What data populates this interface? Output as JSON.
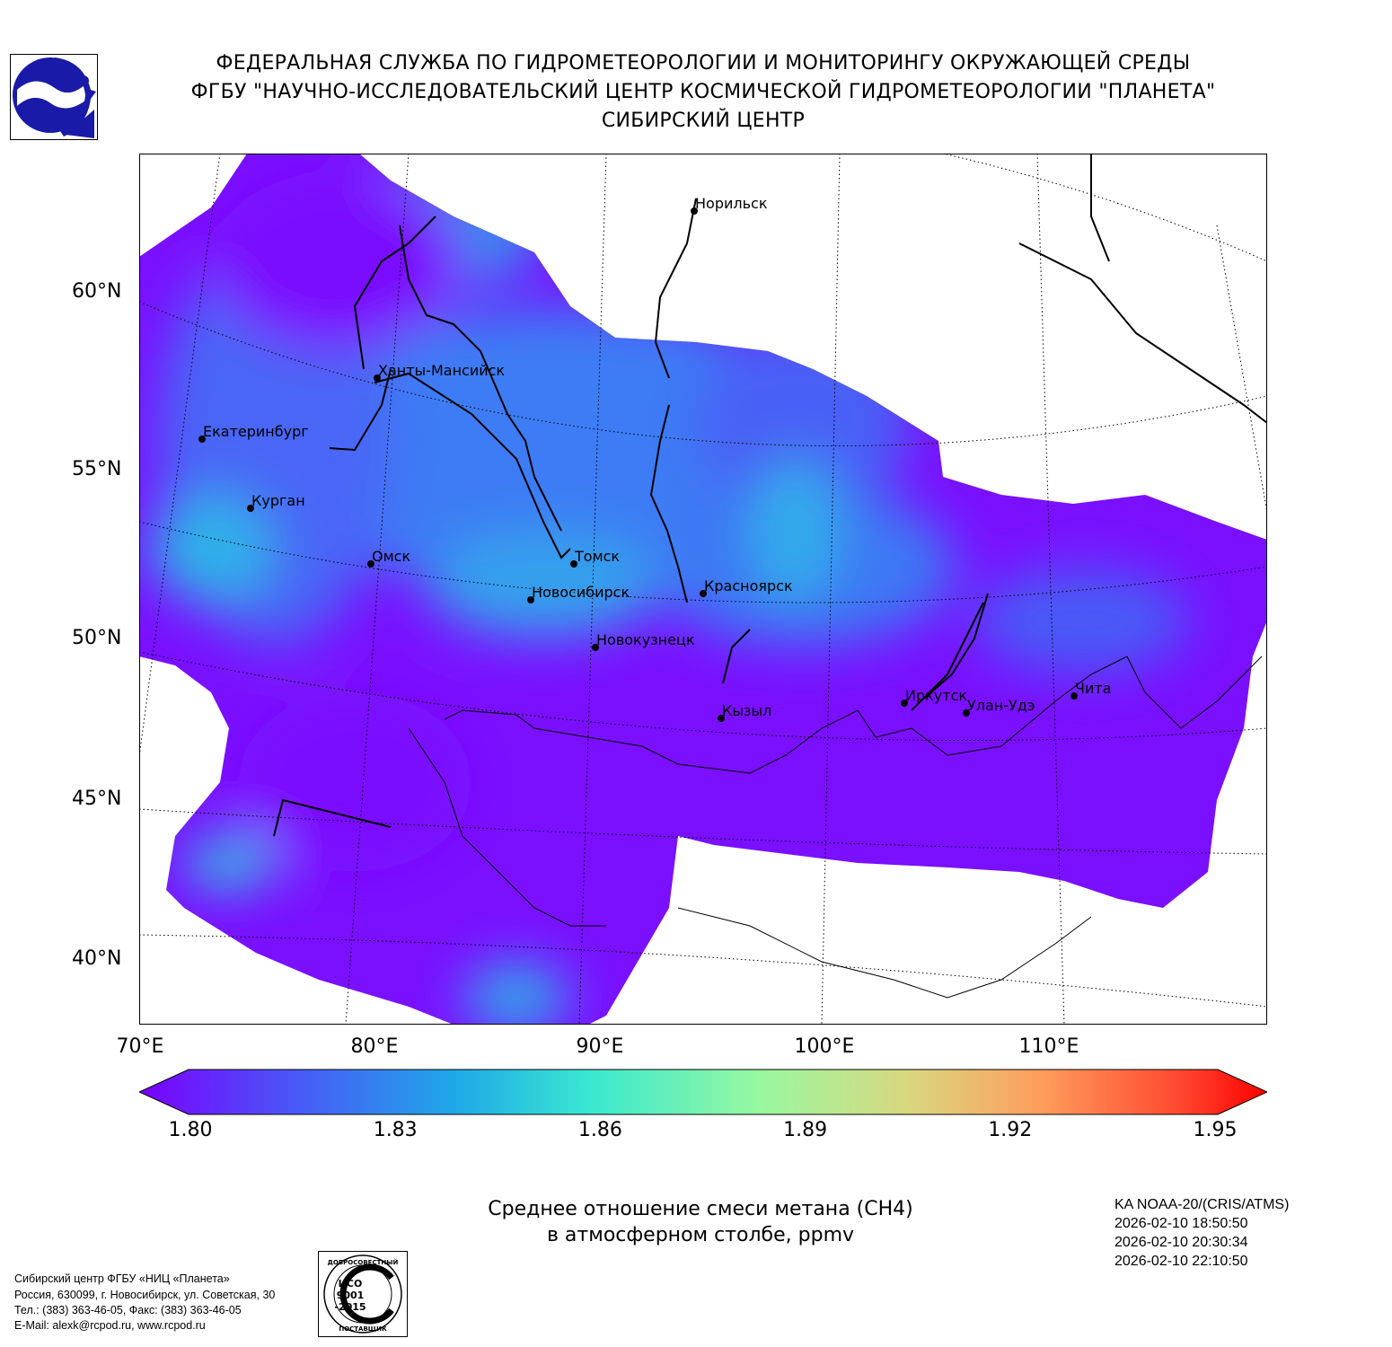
{
  "header": {
    "line1": "ФЕДЕРАЛЬНАЯ СЛУЖБА ПО ГИДРОМЕТЕОРОЛОГИИ И МОНИТОРИНГУ ОКРУЖАЮЩЕЙ СРЕДЫ",
    "line2": "ФГБУ \"НАУЧНО-ИССЛЕДОВАТЕЛЬСКИЙ ЦЕНТР КОСМИЧЕСКОЙ ГИДРОМЕТЕОРОЛОГИИ \"ПЛАНЕТА\"",
    "line3": "СИБИРСКИЙ ЦЕНТР"
  },
  "map": {
    "lat_labels": [
      "60°N",
      "55°N",
      "50°N",
      "45°N",
      "40°N"
    ],
    "lon_labels": [
      "70°E",
      "80°E",
      "90°E",
      "100°E",
      "110°E"
    ],
    "cities": [
      {
        "name": "Норильск"
      },
      {
        "name": "Ханты-Мансийск"
      },
      {
        "name": "Екатеринбург"
      },
      {
        "name": "Курган"
      },
      {
        "name": "Омск"
      },
      {
        "name": "Томск"
      },
      {
        "name": "Новосибирск"
      },
      {
        "name": "Красноярск"
      },
      {
        "name": "Новокузнецк"
      },
      {
        "name": "Кызыл"
      },
      {
        "name": "Иркутск"
      },
      {
        "name": "Улан-Удэ"
      },
      {
        "name": "Чита"
      }
    ],
    "colors": {
      "low": "#7a00ff",
      "mid": "#3a8cf0",
      "cyan": "#20c8e0",
      "high": "#ff0000"
    }
  },
  "colorbar": {
    "min": 1.8,
    "max": 1.95,
    "ticks": [
      "1.80",
      "1.83",
      "1.86",
      "1.89",
      "1.92",
      "1.95"
    ]
  },
  "caption": {
    "line1": "Среднее отношение смеси метана (CH4)",
    "line2": "в атмосферном столбе, ppmv"
  },
  "satellite": {
    "name": "KA NOAA-20/(CRIS/ATMS)",
    "times": [
      "2026-02-10 18:50:50",
      "2026-02-10 20:30:34",
      "2026-02-10 22:10:50"
    ]
  },
  "footer": {
    "line1": "Сибирский центр ФГБУ «НИЦ «Планета»",
    "line2": "Россия, 630099, г. Новосибирск, ул. Советская, 30",
    "line3": "Тел.: (383) 363-46-05, Факс: (383) 363-46-05",
    "line4": "E-Mail: alexk@rcpod.ru, www.rcpod.ru"
  },
  "iso_badge": {
    "top_text": "ДОБРОСОВЕСТНЫЙ",
    "line1": "ИСО",
    "line2": "9001",
    "line3": "-2015",
    "bottom_text": "ПОСТАВЩИК"
  }
}
